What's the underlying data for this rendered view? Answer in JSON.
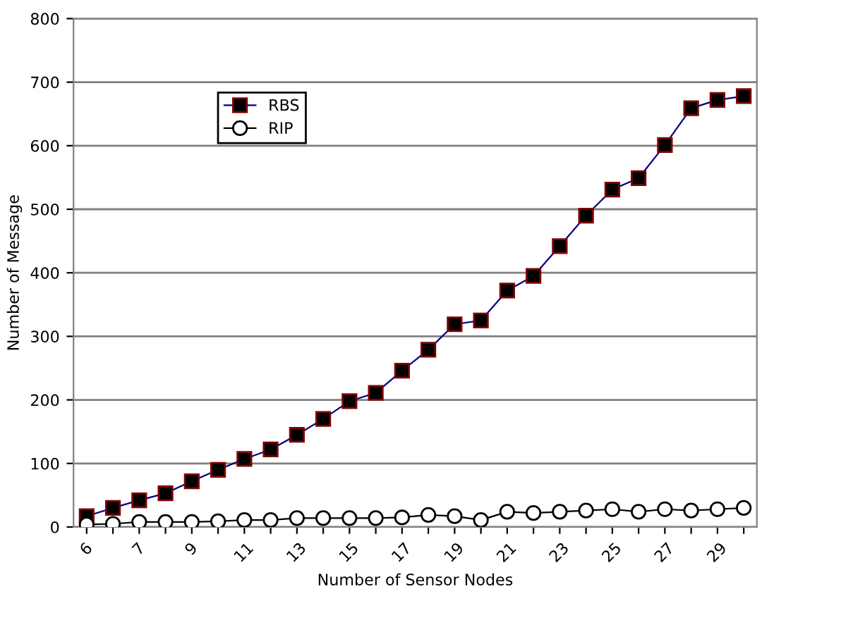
{
  "chart_data": {
    "type": "line",
    "xlabel": "Number of Sensor Nodes",
    "ylabel": "Number of Message",
    "categories": [
      "6",
      null,
      "7",
      null,
      "9",
      null,
      "11",
      null,
      "13",
      null,
      "15",
      null,
      "17",
      null,
      "19",
      null,
      "21",
      null,
      "23",
      null,
      "25",
      null,
      "27",
      null,
      "29",
      null
    ],
    "series": [
      {
        "name": "RBS",
        "color": "#000080",
        "marker": "square",
        "values": [
          17,
          30,
          42,
          53,
          72,
          90,
          107,
          122,
          145,
          170,
          198,
          211,
          246,
          279,
          319,
          325,
          372,
          395,
          442,
          490,
          531,
          549,
          601,
          659,
          672,
          678
        ]
      },
      {
        "name": "RIP",
        "color": "#000000",
        "marker": "circle",
        "values": [
          4,
          5,
          8,
          8,
          8,
          9,
          11,
          11,
          14,
          14,
          14,
          14,
          15,
          19,
          17,
          11,
          24,
          22,
          24,
          26,
          28,
          24,
          28,
          26,
          28,
          30
        ]
      }
    ],
    "ylim": [
      0,
      800
    ],
    "yticks": [
      0,
      100,
      200,
      300,
      400,
      500,
      600,
      700,
      800
    ],
    "grid": "y",
    "legend": "top left",
    "line_style": "solid"
  }
}
